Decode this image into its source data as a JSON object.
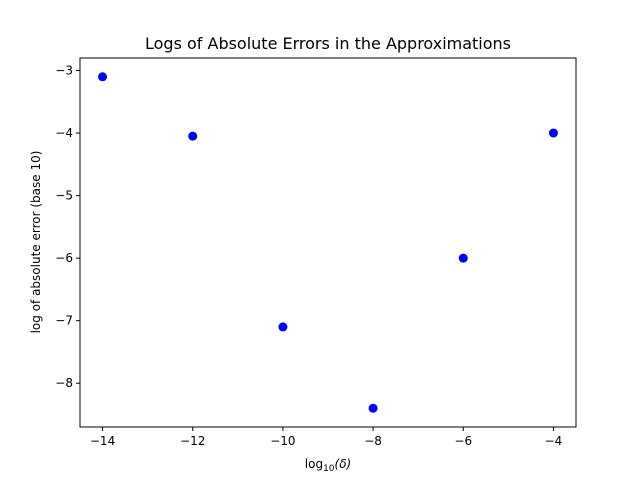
{
  "chart_data": {
    "type": "scatter",
    "title": "Logs of Absolute Errors in the Approximations",
    "xlabel_main": "log",
    "xlabel_sub": "10",
    "xlabel_arg": "(δ)",
    "ylabel": "log of absolute error (base 10)",
    "x": [
      -14,
      -12,
      -10,
      -8,
      -6,
      -4
    ],
    "y": [
      -3.1,
      -4.05,
      -7.1,
      -8.4,
      -6.0,
      -4.0
    ],
    "xlim": [
      -14.5,
      -3.5
    ],
    "ylim": [
      -8.7,
      -2.8
    ],
    "xticks": [
      -14,
      -12,
      -10,
      -8,
      -6,
      -4
    ],
    "yticks": [
      -8,
      -7,
      -6,
      -5,
      -4,
      -3
    ],
    "xtick_labels": [
      "−14",
      "−12",
      "−10",
      "−8",
      "−6",
      "−4"
    ],
    "ytick_labels": [
      "−8",
      "−7",
      "−6",
      "−5",
      "−4",
      "−3"
    ],
    "marker_color": "#0000ff",
    "grid": false,
    "legend": "none"
  }
}
